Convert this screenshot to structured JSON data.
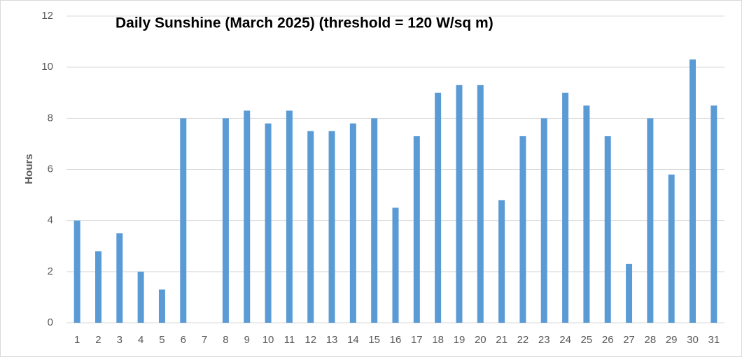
{
  "chart_data": {
    "type": "bar",
    "title": "Daily Sunshine (March 2025) (threshold = 120 W/sq m)",
    "y_label": "Hours",
    "categories": [
      "1",
      "2",
      "3",
      "4",
      "5",
      "6",
      "7",
      "8",
      "9",
      "10",
      "11",
      "12",
      "13",
      "14",
      "15",
      "16",
      "17",
      "18",
      "19",
      "20",
      "21",
      "22",
      "23",
      "24",
      "25",
      "26",
      "27",
      "28",
      "29",
      "30",
      "31"
    ],
    "values": [
      4,
      2.8,
      3.5,
      2,
      1.3,
      8,
      0,
      8,
      8.3,
      7.8,
      8.3,
      7.5,
      7.5,
      7.8,
      8,
      4.5,
      7.3,
      9,
      9.3,
      9.3,
      4.8,
      7.3,
      8,
      9,
      8.5,
      7.3,
      2.3,
      8,
      5.8,
      10.3,
      8.5
    ],
    "color": "#5b9bd5",
    "ylim": [
      0,
      12
    ],
    "yticks": [
      0,
      2,
      4,
      6,
      8,
      10,
      12
    ],
    "grid": true
  }
}
